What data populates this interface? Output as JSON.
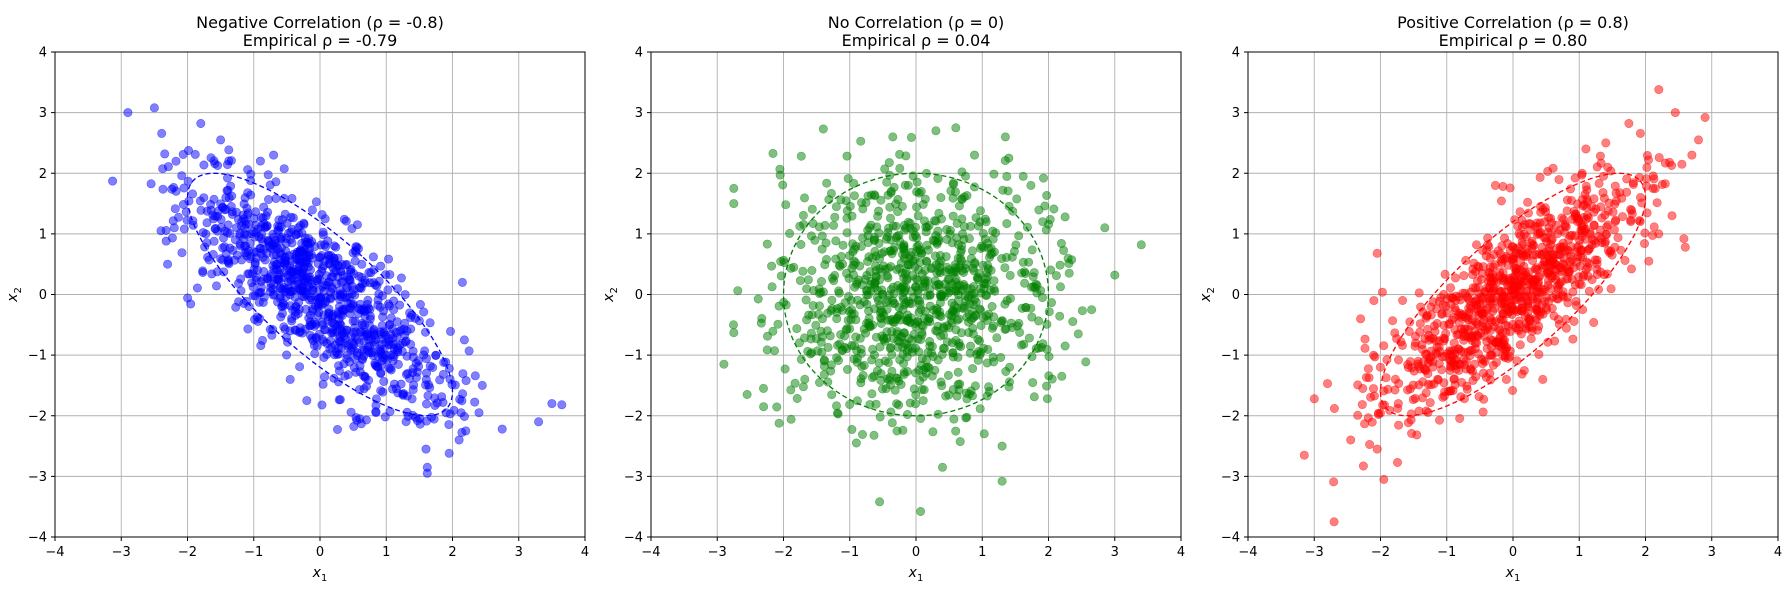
{
  "chart_data": [
    {
      "type": "scatter",
      "title": "Negative Correlation (ρ = -0.8)",
      "subtitle": "Empirical ρ = -0.79",
      "xlabel": "x1",
      "ylabel": "x2",
      "xlim": [
        -4,
        4
      ],
      "ylim": [
        -4,
        4
      ],
      "xticks": [
        -4,
        -3,
        -2,
        -1,
        0,
        1,
        2,
        3,
        4
      ],
      "yticks": [
        -4,
        -3,
        -2,
        -1,
        0,
        1,
        2,
        3,
        4
      ],
      "tick_labels": [
        "−4",
        "−3",
        "−2",
        "−1",
        "0",
        "1",
        "2",
        "3",
        "4"
      ],
      "grid": true,
      "color": "#0000ff",
      "rho": -0.8,
      "n_points": 1000,
      "ellipse": {
        "style": "dashed",
        "color": "#0000ff",
        "rho": -0.8
      },
      "outliers": [
        [
          -3.13,
          1.87
        ],
        [
          -2.9,
          3.0
        ],
        [
          -2.5,
          3.08
        ],
        [
          -1.8,
          2.82
        ],
        [
          -0.7,
          2.3
        ],
        [
          -0.9,
          2.2
        ],
        [
          -1.5,
          2.55
        ],
        [
          -2.3,
          0.5
        ],
        [
          -2.4,
          1.05
        ],
        [
          -2.2,
          1.1
        ],
        [
          3.65,
          -1.82
        ],
        [
          3.5,
          -1.8
        ],
        [
          3.3,
          -2.1
        ],
        [
          2.75,
          -2.22
        ],
        [
          2.45,
          -1.5
        ],
        [
          2.25,
          -0.93
        ],
        [
          2.1,
          -2.4
        ],
        [
          1.62,
          -2.95
        ],
        [
          1.62,
          -2.85
        ],
        [
          1.6,
          -2.55
        ],
        [
          1.95,
          -2.62
        ],
        [
          0.6,
          -2.05
        ],
        [
          -0.45,
          -1.4
        ],
        [
          -0.2,
          -1.75
        ],
        [
          2.15,
          0.2
        ],
        [
          2.2,
          -2.25
        ],
        [
          2.4,
          -1.95
        ]
      ]
    },
    {
      "type": "scatter",
      "title": "No Correlation (ρ = 0)",
      "subtitle": "Empirical ρ = 0.04",
      "xlabel": "x1",
      "ylabel": "x2",
      "xlim": [
        -4,
        4
      ],
      "ylim": [
        -4,
        4
      ],
      "xticks": [
        -4,
        -3,
        -2,
        -1,
        0,
        1,
        2,
        3,
        4
      ],
      "yticks": [
        -4,
        -3,
        -2,
        -1,
        0,
        1,
        2,
        3,
        4
      ],
      "tick_labels": [
        "−4",
        "−3",
        "−2",
        "−1",
        "0",
        "1",
        "2",
        "3",
        "4"
      ],
      "grid": true,
      "color": "#008000",
      "rho": 0.0,
      "n_points": 1000,
      "ellipse": {
        "style": "dashed",
        "color": "#008000",
        "rho": 0.0
      },
      "outliers": [
        [
          -2.75,
          1.75
        ],
        [
          -2.75,
          1.5
        ],
        [
          -2.9,
          -1.15
        ],
        [
          -2.75,
          -0.63
        ],
        [
          -2.55,
          -1.65
        ],
        [
          -2.3,
          -1.85
        ],
        [
          -2.05,
          1.97
        ],
        [
          -1.4,
          2.73
        ],
        [
          3.4,
          0.82
        ],
        [
          3.0,
          0.32
        ],
        [
          2.85,
          1.1
        ],
        [
          2.65,
          -0.25
        ],
        [
          2.45,
          -0.65
        ],
        [
          2.25,
          1.28
        ],
        [
          2.25,
          -0.85
        ],
        [
          2.2,
          -1.35
        ],
        [
          1.3,
          -3.08
        ],
        [
          1.3,
          -2.5
        ],
        [
          0.4,
          -2.85
        ],
        [
          0.07,
          -3.58
        ],
        [
          -0.55,
          -3.42
        ],
        [
          -0.9,
          -2.45
        ],
        [
          1.35,
          2.6
        ],
        [
          1.4,
          2.25
        ],
        [
          0.3,
          2.7
        ],
        [
          0.6,
          2.75
        ],
        [
          -0.35,
          2.6
        ]
      ]
    },
    {
      "type": "scatter",
      "title": "Positive Correlation (ρ = 0.8)",
      "subtitle": "Empirical ρ = 0.80",
      "xlabel": "x1",
      "ylabel": "x2",
      "xlim": [
        -4,
        4
      ],
      "ylim": [
        -4,
        4
      ],
      "xticks": [
        -4,
        -3,
        -2,
        -1,
        0,
        1,
        2,
        3,
        4
      ],
      "yticks": [
        -4,
        -3,
        -2,
        -1,
        0,
        1,
        2,
        3,
        4
      ],
      "tick_labels": [
        "−4",
        "−3",
        "−2",
        "−1",
        "0",
        "1",
        "2",
        "3",
        "4"
      ],
      "grid": true,
      "color": "#ff0000",
      "rho": 0.8,
      "n_points": 1000,
      "ellipse": {
        "style": "dashed",
        "color": "#ff0000",
        "rho": 0.8
      },
      "outliers": [
        [
          -2.7,
          -3.75
        ],
        [
          -3.15,
          -2.65
        ],
        [
          -3.0,
          -1.72
        ],
        [
          -2.8,
          -1.47
        ],
        [
          -2.45,
          -2.4
        ],
        [
          -2.05,
          -2.55
        ],
        [
          -1.95,
          -3.05
        ],
        [
          -2.05,
          0.68
        ],
        [
          -2.1,
          -0.1
        ],
        [
          -2.3,
          -0.4
        ],
        [
          2.2,
          3.38
        ],
        [
          2.45,
          3.0
        ],
        [
          2.9,
          2.92
        ],
        [
          2.8,
          2.55
        ],
        [
          2.55,
          2.15
        ],
        [
          2.7,
          2.3
        ],
        [
          2.4,
          1.3
        ],
        [
          2.6,
          0.78
        ],
        [
          2.2,
          1.0
        ],
        [
          2.05,
          0.55
        ],
        [
          1.75,
          2.82
        ],
        [
          1.1,
          2.4
        ],
        [
          1.05,
          -0.25
        ],
        [
          0.45,
          -1.4
        ],
        [
          1.4,
          2.5
        ],
        [
          -0.1,
          -1.4
        ],
        [
          -0.35,
          -1.3
        ]
      ]
    }
  ]
}
